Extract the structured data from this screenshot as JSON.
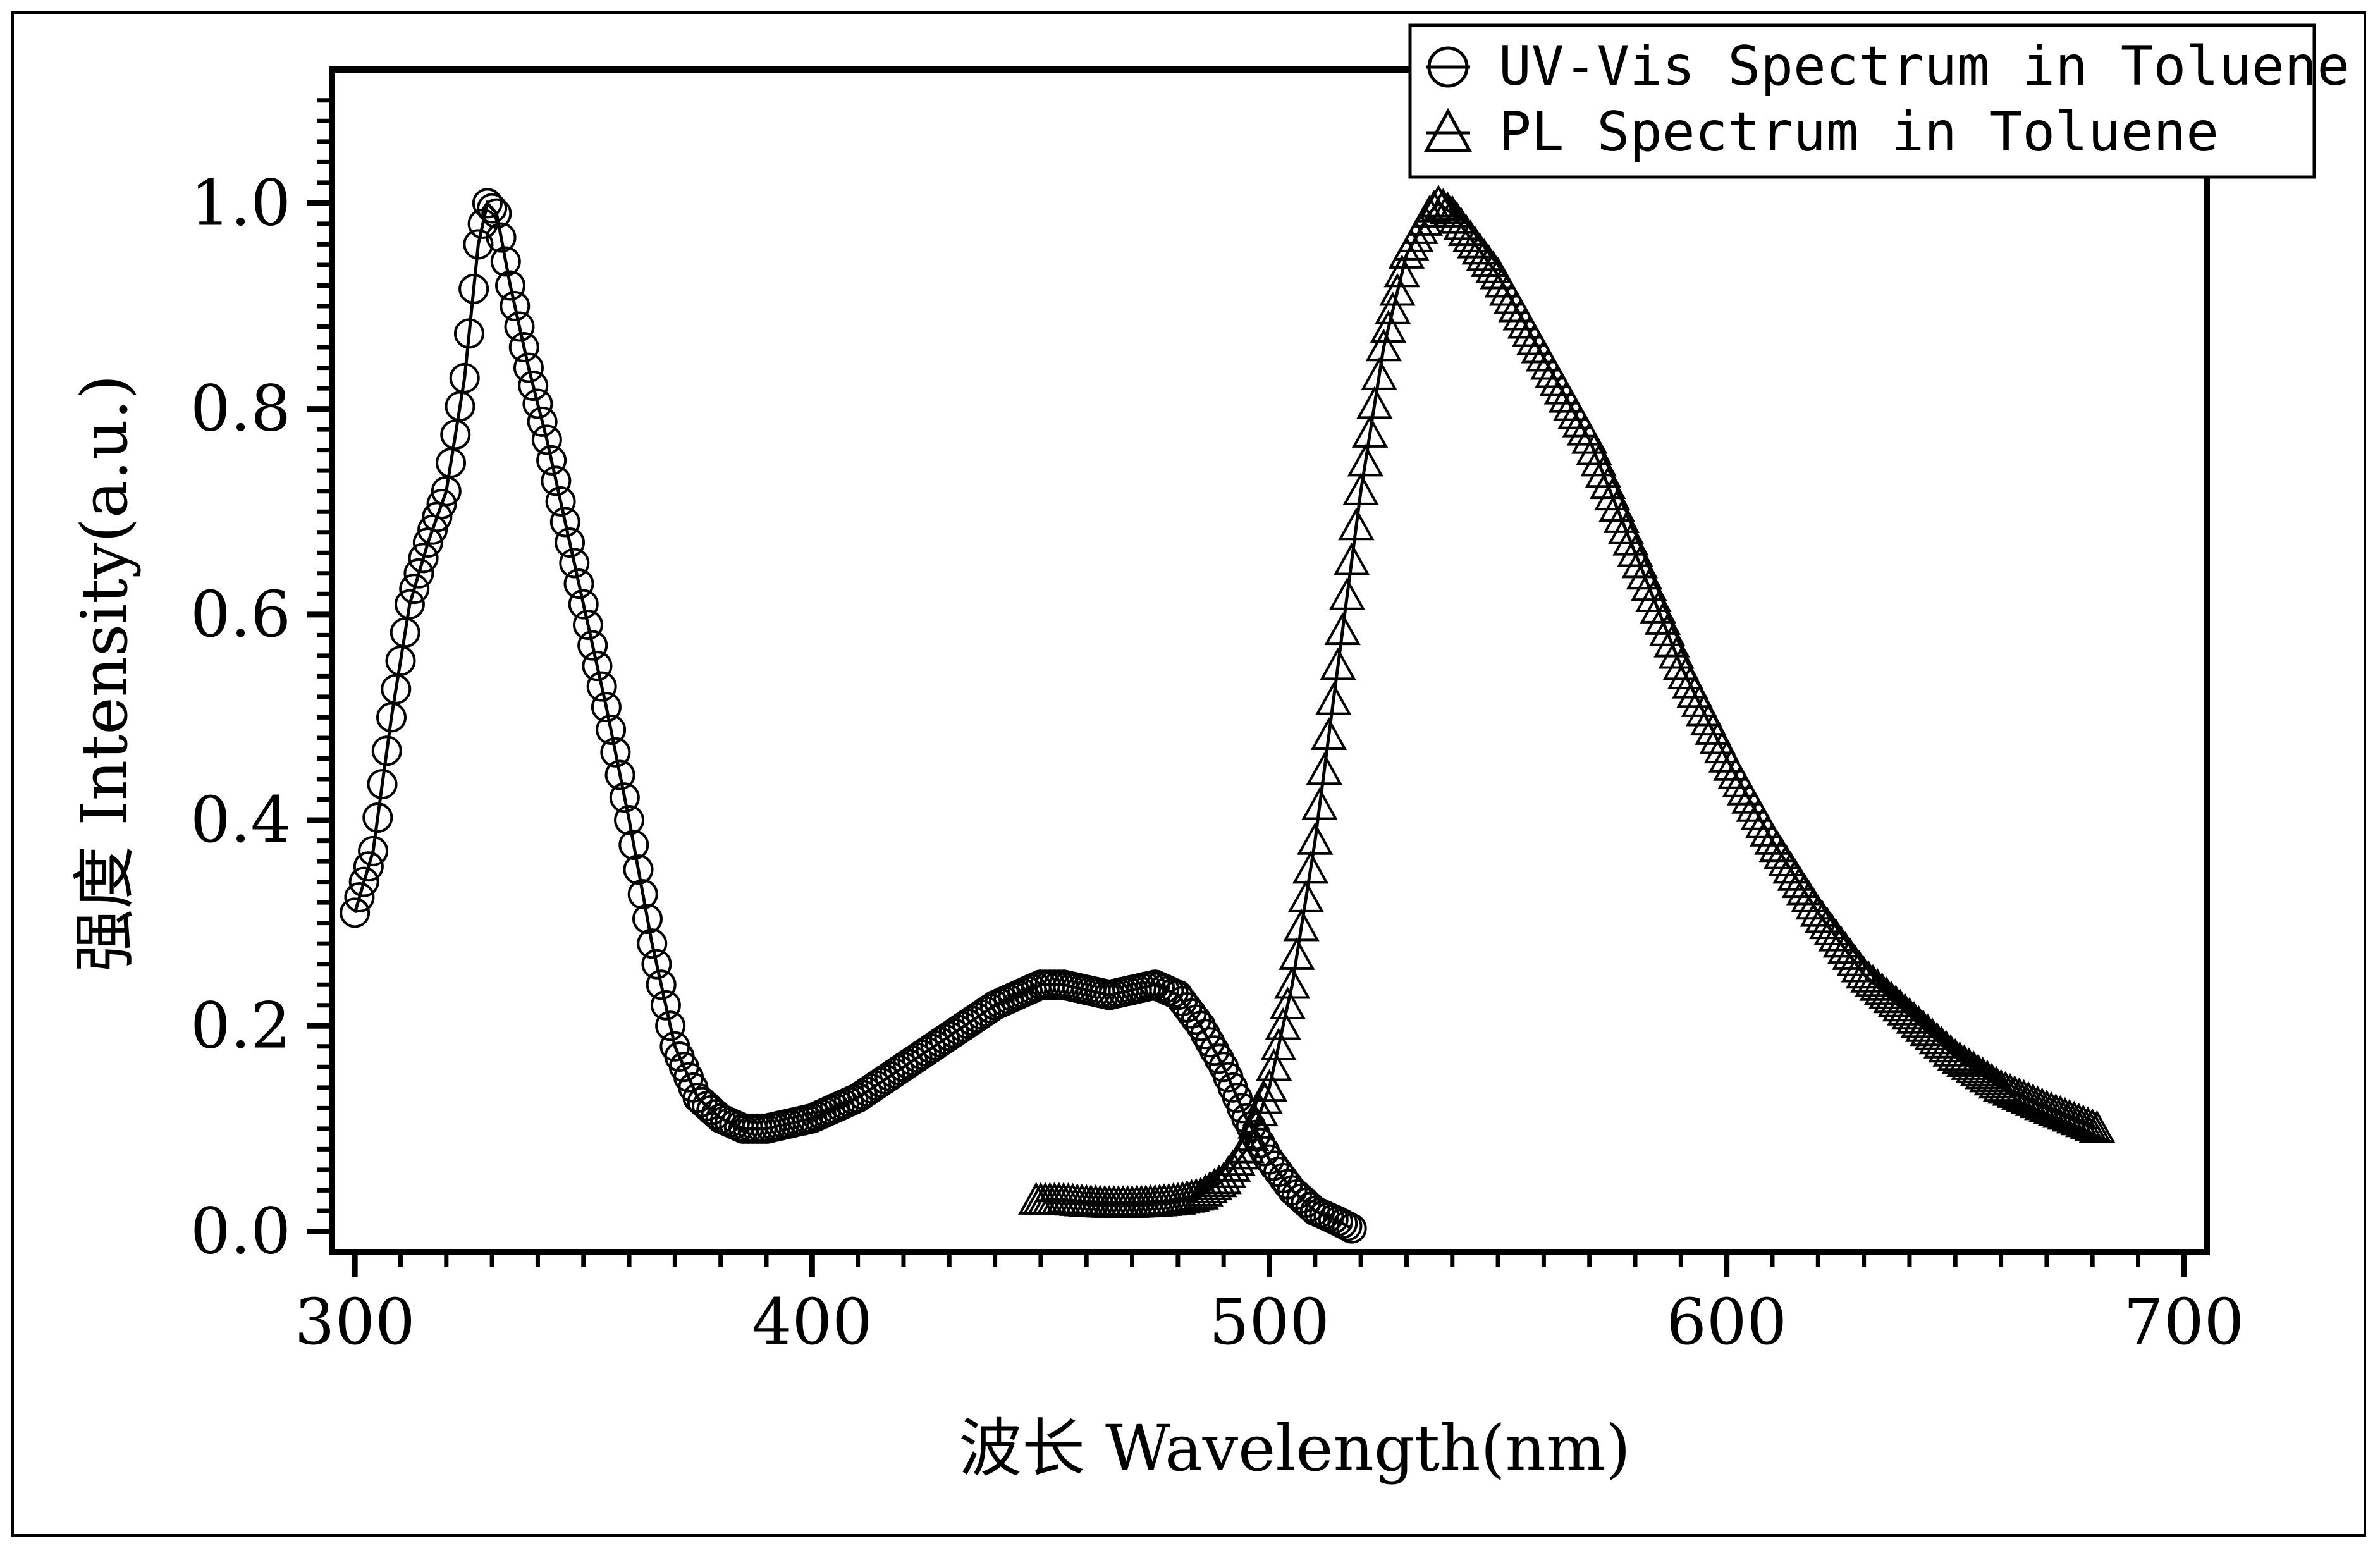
{
  "chart_data": {
    "type": "scatter",
    "xlabel": "波长 Wavelength(nm)",
    "ylabel": "强度 Intensity(a.u.)",
    "xlim": [
      295,
      705
    ],
    "ylim": [
      -0.02,
      1.13
    ],
    "xticks": [
      300,
      400,
      500,
      600,
      700
    ],
    "xtick_labels": [
      "300",
      "400",
      "500",
      "600",
      "700"
    ],
    "yticks": [
      0,
      0.2,
      0.4,
      0.6,
      0.8,
      1.0
    ],
    "ytick_labels": [
      "0.0",
      "0.2",
      "0.4",
      "0.6",
      "0.8",
      "1.0"
    ],
    "grid": false,
    "legend_position": "top-right",
    "series": [
      {
        "name": "UV-Vis Spectrum in Toluene",
        "marker": "circle",
        "x": [
          300,
          304,
          308,
          312,
          316,
          320,
          324,
          327,
          329,
          331,
          334,
          338,
          342,
          346,
          350,
          355,
          360,
          365,
          370,
          375,
          380,
          385,
          390,
          395,
          400,
          410,
          420,
          430,
          440,
          450,
          455,
          460,
          465,
          470,
          475,
          480,
          485,
          490,
          495,
          500,
          505,
          510,
          515,
          518
        ],
        "y": [
          0.31,
          0.37,
          0.5,
          0.61,
          0.67,
          0.72,
          0.83,
          0.96,
          1.0,
          0.99,
          0.92,
          0.84,
          0.77,
          0.69,
          0.61,
          0.51,
          0.4,
          0.28,
          0.18,
          0.13,
          0.11,
          0.1,
          0.1,
          0.105,
          0.11,
          0.13,
          0.16,
          0.19,
          0.22,
          0.24,
          0.24,
          0.235,
          0.23,
          0.235,
          0.24,
          0.23,
          0.2,
          0.16,
          0.11,
          0.07,
          0.04,
          0.02,
          0.01,
          0.003
        ]
      },
      {
        "name": "PL Spectrum in Toluene",
        "marker": "triangle",
        "x": [
          449,
          455,
          460,
          465,
          470,
          475,
          480,
          485,
          490,
          495,
          500,
          505,
          510,
          515,
          520,
          525,
          530,
          535,
          537,
          540,
          545,
          550,
          555,
          560,
          570,
          580,
          590,
          600,
          610,
          620,
          630,
          640,
          650,
          660,
          670,
          681
        ],
        "y": [
          0.03,
          0.03,
          0.028,
          0.027,
          0.027,
          0.028,
          0.03,
          0.035,
          0.05,
          0.08,
          0.14,
          0.24,
          0.38,
          0.55,
          0.72,
          0.86,
          0.95,
          0.99,
          1.0,
          0.99,
          0.96,
          0.93,
          0.89,
          0.85,
          0.77,
          0.66,
          0.55,
          0.46,
          0.38,
          0.31,
          0.25,
          0.21,
          0.17,
          0.14,
          0.12,
          0.1
        ]
      }
    ]
  }
}
